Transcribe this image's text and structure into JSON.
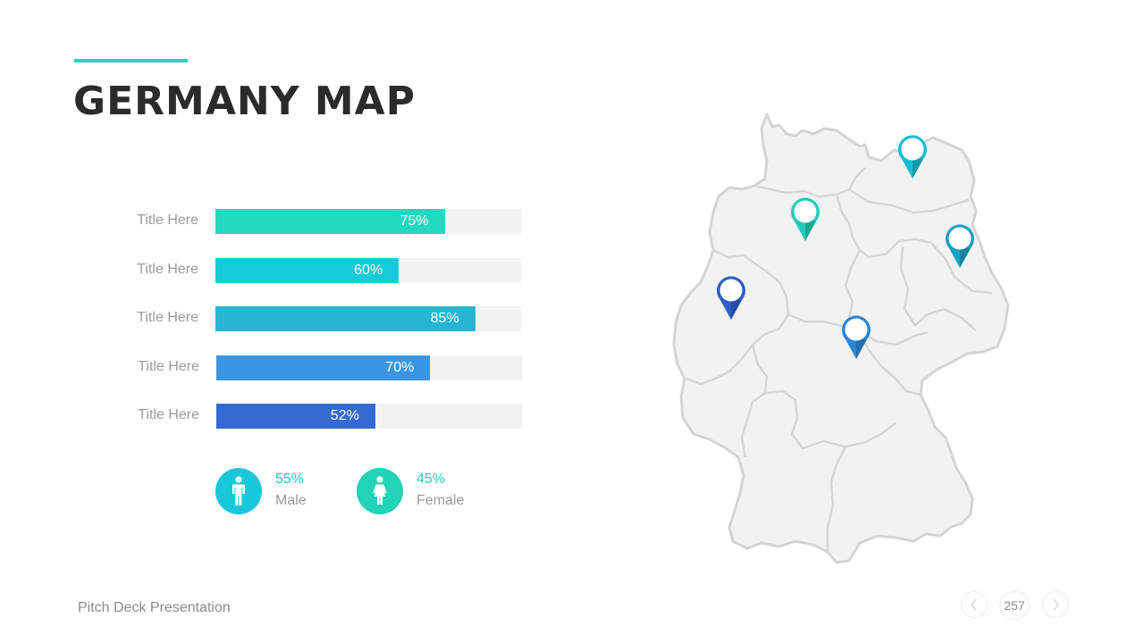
{
  "slide": {
    "title": "GERMANY MAP",
    "footer": "Pitch Deck Presentation",
    "page_number": "257"
  },
  "chart_data": {
    "type": "bar",
    "orientation": "horizontal",
    "categories": [
      "Title Here",
      "Title Here",
      "Title Here",
      "Title Here",
      "Title Here"
    ],
    "values": [
      75,
      60,
      85,
      70,
      52
    ],
    "value_labels": [
      "75%",
      "60%",
      "85%",
      "70%",
      "52%"
    ],
    "xlim": [
      0,
      100
    ],
    "colors": [
      "#22d8c0",
      "#16cadb",
      "#26b5d3",
      "#3a96e2",
      "#3369d1"
    ],
    "track_color": "#f2f2f2"
  },
  "stats": [
    {
      "value": "55%",
      "label": "Male",
      "icon": "male-person-icon",
      "color": "#18c8da"
    },
    {
      "value": "45%",
      "label": "Female",
      "icon": "female-person-icon",
      "color": "#22d3b8"
    }
  ],
  "map": {
    "region": "Germany",
    "pins": [
      {
        "name": "pin-hamburg-area",
        "color": "#22cbb8"
      },
      {
        "name": "pin-mecklenburg",
        "color": "#16bfd0"
      },
      {
        "name": "pin-brandenburg",
        "color": "#1aa0c4"
      },
      {
        "name": "pin-nrw",
        "color": "#2c5fc7"
      },
      {
        "name": "pin-thuringia",
        "color": "#2b86d6"
      }
    ]
  },
  "colors": {
    "accent": "#22d3c0",
    "title": "#2b2b2b",
    "muted_text": "#9a9a9a",
    "map_fill": "#f2f2f2",
    "map_stroke": "#d4d4d4"
  },
  "nav": {
    "prev_icon": "chevron-left-icon",
    "next_icon": "chevron-right-icon"
  }
}
